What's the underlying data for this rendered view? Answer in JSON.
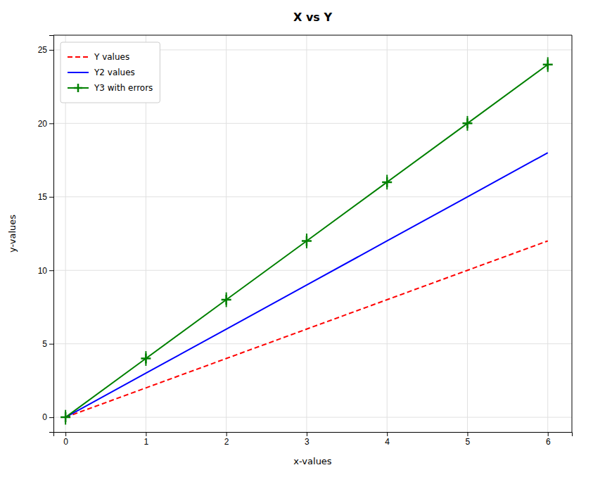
{
  "chart_data": {
    "type": "line",
    "title": "X vs Y",
    "x_label": "x-values",
    "y_label": "y-values",
    "x": [
      0,
      1,
      2,
      3,
      4,
      5,
      6
    ],
    "series": [
      {
        "name": "Y values",
        "color": "#ff0000",
        "line_style": "dashed",
        "values": [
          0,
          2,
          4,
          6,
          8,
          10,
          12
        ]
      },
      {
        "name": "Y2 values",
        "color": "#0000ff",
        "line_style": "solid",
        "values": [
          0,
          3,
          6,
          9,
          12,
          15,
          18
        ]
      },
      {
        "name": "Y3 with errors",
        "color": "#008000",
        "line_style": "solid",
        "marker": "plus",
        "values": [
          0,
          4,
          8,
          12,
          16,
          20,
          24
        ],
        "errors": [
          0.5,
          0.5,
          0.5,
          0.5,
          0.5,
          0.5,
          0.5
        ]
      }
    ],
    "xlim": [
      -0.15,
      6.3
    ],
    "ylim": [
      -1,
      26
    ],
    "xticks": [
      0,
      1,
      2,
      3,
      4,
      5,
      6
    ],
    "yticks": [
      0,
      5,
      10,
      15,
      20,
      25
    ],
    "grid": true,
    "legend": "upper left"
  }
}
